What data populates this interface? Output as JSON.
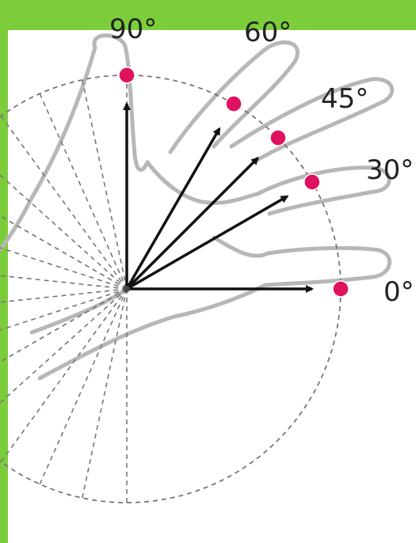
{
  "colors": {
    "frame": "#7ccd3a",
    "dot": "#e0125f",
    "arrow": "#111111",
    "guide": "#777777",
    "hand": "#b7b7b7"
  },
  "diagram": {
    "angles": [
      {
        "degrees": 90,
        "label": "90°"
      },
      {
        "degrees": 60,
        "label": "60°"
      },
      {
        "degrees": 45,
        "label": "45°"
      },
      {
        "degrees": 30,
        "label": "30°"
      },
      {
        "degrees": 0,
        "label": "0°"
      }
    ],
    "guide_line_count": 16
  }
}
